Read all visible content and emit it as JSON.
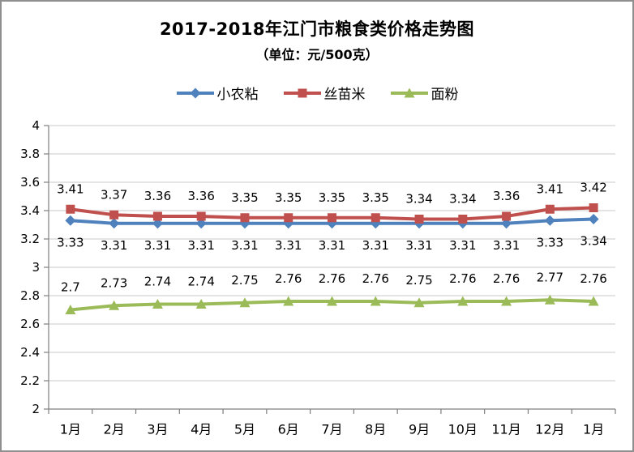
{
  "chart_data": {
    "type": "line",
    "title": "2017-2018年江门市粮食类价格走势图",
    "subtitle": "（单位：元/500克）",
    "categories": [
      "1月",
      "2月",
      "3月",
      "4月",
      "5月",
      "6月",
      "7月",
      "8月",
      "9月",
      "10月",
      "11月",
      "12月",
      "1月"
    ],
    "series": [
      {
        "name": "小农粘",
        "color": "#4F81BD",
        "marker": "diamond",
        "label_position": "below",
        "values": [
          3.33,
          3.31,
          3.31,
          3.31,
          3.31,
          3.31,
          3.31,
          3.31,
          3.31,
          3.31,
          3.31,
          3.33,
          3.34
        ]
      },
      {
        "name": "丝苗米",
        "color": "#C0504D",
        "marker": "square",
        "label_position": "above",
        "values": [
          3.41,
          3.37,
          3.36,
          3.36,
          3.35,
          3.35,
          3.35,
          3.35,
          3.34,
          3.34,
          3.36,
          3.41,
          3.42
        ]
      },
      {
        "name": "面粉",
        "color": "#9BBB59",
        "marker": "triangle",
        "label_position": "above",
        "values": [
          2.7,
          2.73,
          2.74,
          2.74,
          2.75,
          2.76,
          2.76,
          2.76,
          2.75,
          2.76,
          2.76,
          2.77,
          2.76
        ]
      }
    ],
    "ylim": [
      2,
      4
    ],
    "yticks": [
      "2",
      "2.2",
      "2.4",
      "2.6",
      "2.8",
      "3",
      "3.2",
      "3.4",
      "3.6",
      "3.8",
      "4"
    ],
    "grid": true,
    "legend_position": "top",
    "data_labels": true,
    "colors": {
      "grid": "#C9C9C9",
      "axis": "#7F7F7F",
      "frame_border": "#8f8f8f",
      "label_text": "#000000"
    }
  }
}
